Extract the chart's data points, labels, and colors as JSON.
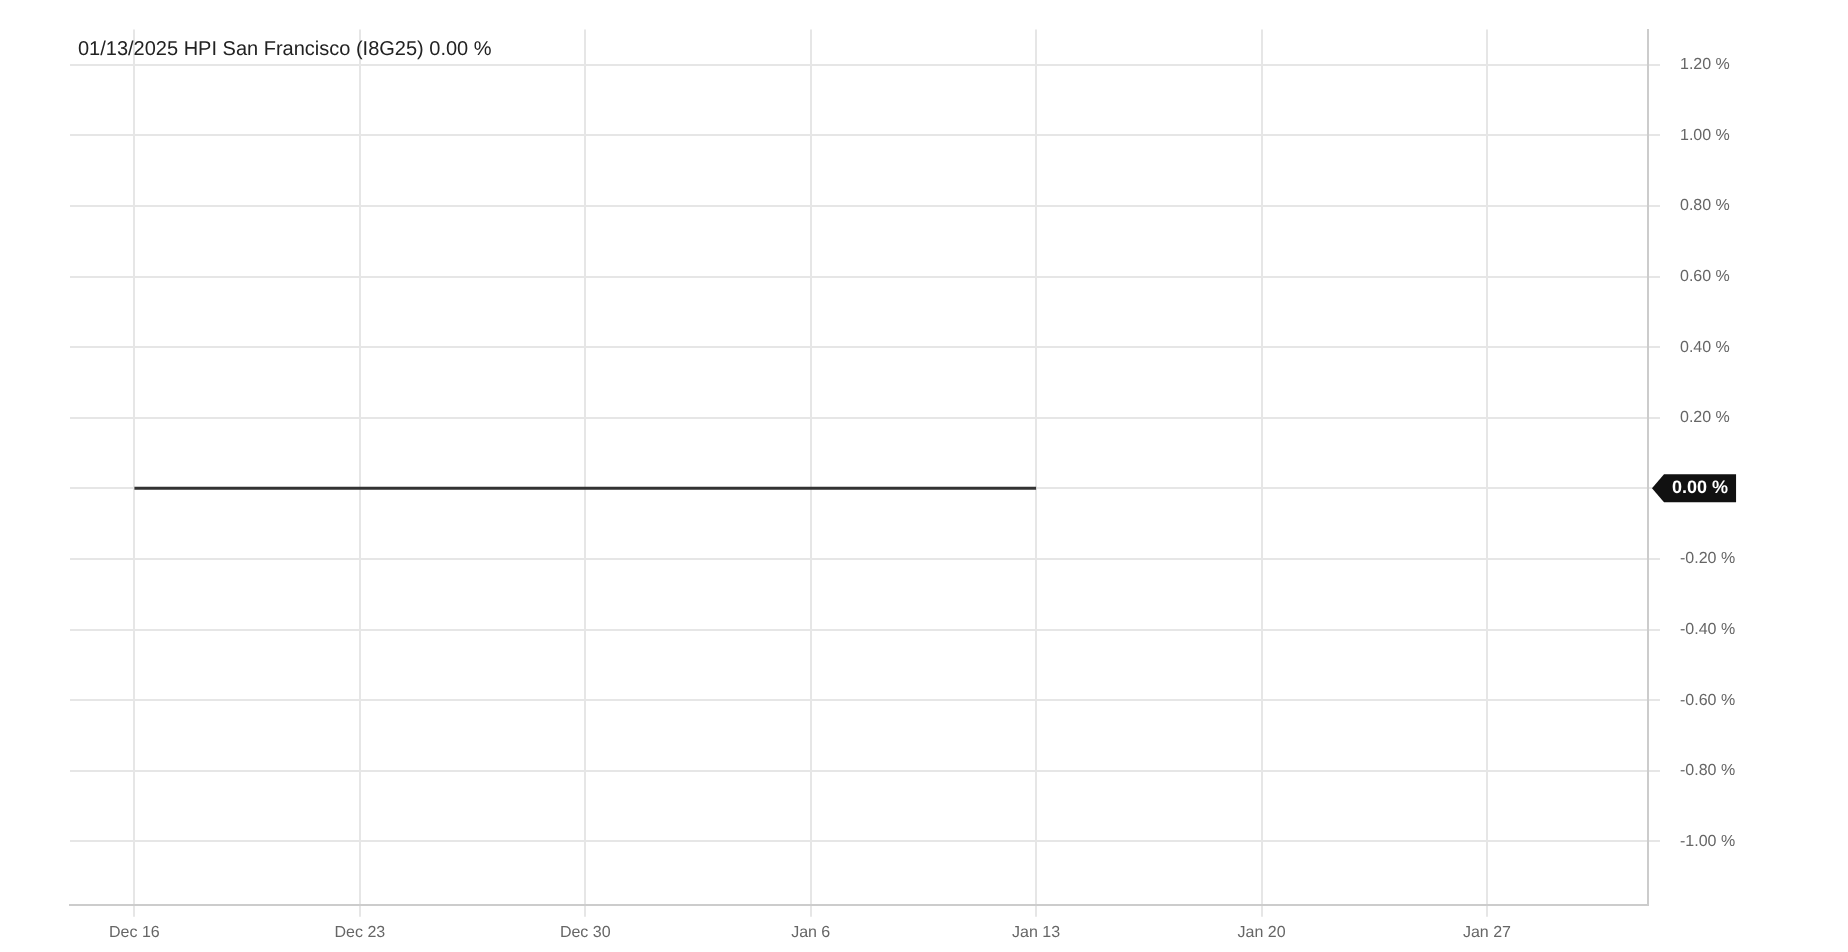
{
  "chart_data": {
    "type": "line",
    "title": "01/13/2025 HPI San Francisco (I8G25) 0.00 %",
    "x": [
      "2024-12-16",
      "2024-12-23",
      "2024-12-30",
      "2025-01-06",
      "2025-01-13"
    ],
    "series": [
      {
        "color": "#333333",
        "values": [
          0,
          0,
          0,
          0,
          0
        ]
      }
    ],
    "xlim": [
      "2024-12-14",
      "2025-02-01"
    ],
    "xticks": [
      {
        "value": "2024-12-16",
        "label": "Dec 16"
      },
      {
        "value": "2024-12-23",
        "label": "Dec 23"
      },
      {
        "value": "2024-12-30",
        "label": "Dec 30"
      },
      {
        "value": "2025-01-06",
        "label": "Jan 6"
      },
      {
        "value": "2025-01-13",
        "label": "Jan 13"
      },
      {
        "value": "2025-01-20",
        "label": "Jan 20"
      },
      {
        "value": "2025-01-27",
        "label": "Jan 27"
      }
    ],
    "ylim": [
      -1.18,
      1.3
    ],
    "yticks": [
      {
        "value": -1,
        "label": "-1.00 %"
      },
      {
        "value": -0.8,
        "label": "-0.80 %"
      },
      {
        "value": -0.6,
        "label": "-0.60 %"
      },
      {
        "value": -0.4,
        "label": "-0.40 %"
      },
      {
        "value": -0.2,
        "label": "-0.20 %"
      },
      {
        "value": 0,
        "label": null
      },
      {
        "value": 0.2,
        "label": "0.20 %"
      },
      {
        "value": 0.4,
        "label": "0.40 %"
      },
      {
        "value": 0.6,
        "label": "0.60 %"
      },
      {
        "value": 0.8,
        "label": "0.80 %"
      },
      {
        "value": 1,
        "label": "1.00 %"
      },
      {
        "value": 1.2,
        "label": "1.20 %"
      }
    ],
    "annotations": [
      "0.00 %"
    ],
    "grid": true,
    "legend": false,
    "marker": "none",
    "line_style": "solid"
  }
}
